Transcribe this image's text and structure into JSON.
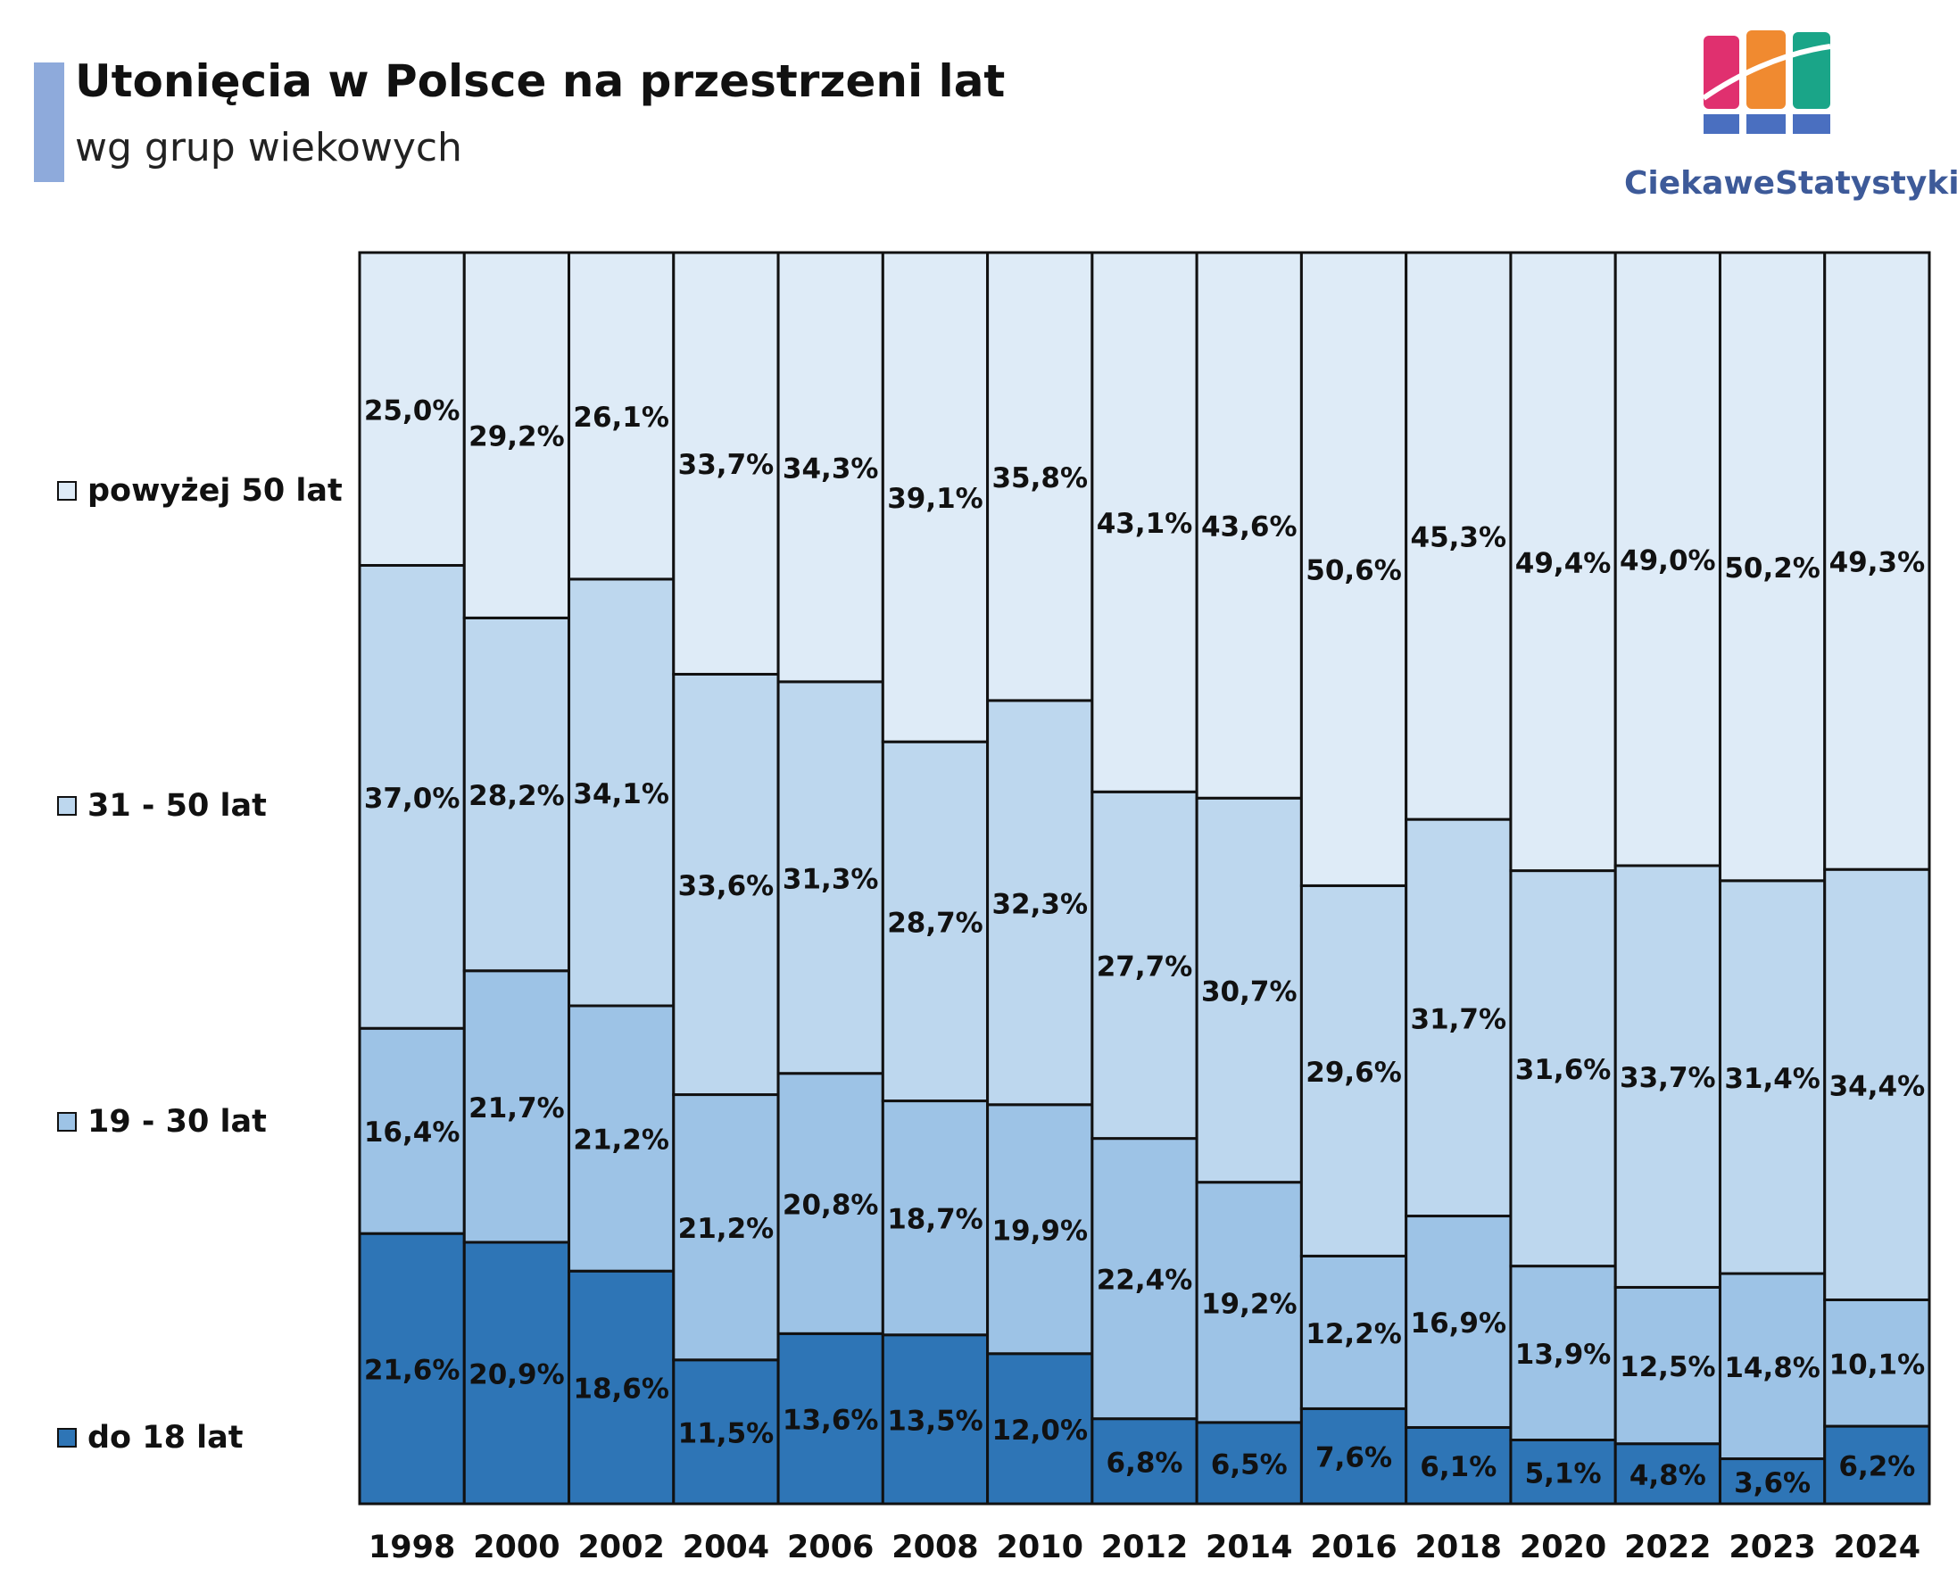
{
  "header": {
    "title": "Utonięcia w Polsce na przestrzeni lat",
    "subtitle": "wg grup wiekowych",
    "logo_text": "CiekaweStatystyki.pl"
  },
  "colors": {
    "do_18": "#2e75b6",
    "19_30": "#9dc3e6",
    "31_50": "#bdd7ee",
    "pow_50": "#deebf7",
    "accent": "#8eaadb",
    "logo_pink": "#e0306f",
    "logo_orange": "#f08a30",
    "logo_teal": "#1aa588",
    "logo_blue": "#4a6fc0"
  },
  "chart_data": {
    "type": "bar",
    "stacked": true,
    "normalized_percent": true,
    "title": "Utonięcia w Polsce na przestrzeni lat",
    "subtitle": "wg grup wiekowych",
    "xlabel": "",
    "ylabel": "",
    "ylim": [
      0,
      100
    ],
    "legend_position": "left",
    "categories": [
      "1998",
      "2000",
      "2002",
      "2004",
      "2006",
      "2008",
      "2010",
      "2012",
      "2014",
      "2016",
      "2018",
      "2020",
      "2022",
      "2023",
      "2024"
    ],
    "series": [
      {
        "name": "do 18 lat",
        "color_key": "do_18",
        "values": [
          21.6,
          20.9,
          18.6,
          11.5,
          13.6,
          13.5,
          12.0,
          6.8,
          6.5,
          7.6,
          6.1,
          5.1,
          4.8,
          3.6,
          6.2
        ],
        "labels": [
          "21,6%",
          "20,9%",
          "18,6%",
          "11,5%",
          "13,6%",
          "13,5%",
          "12,0%",
          "6,8%",
          "6,5%",
          "7,6%",
          "6,1%",
          "5,1%",
          "4,8%",
          "3,6%",
          "6,2%"
        ]
      },
      {
        "name": "19 - 30 lat",
        "color_key": "19_30",
        "values": [
          16.4,
          21.7,
          21.2,
          21.2,
          20.8,
          18.7,
          19.9,
          22.4,
          19.2,
          12.2,
          16.9,
          13.9,
          12.5,
          14.8,
          10.1
        ],
        "labels": [
          "16,4%",
          "21,7%",
          "21,2%",
          "21,2%",
          "20,8%",
          "18,7%",
          "19,9%",
          "22,4%",
          "19,2%",
          "12,2%",
          "16,9%",
          "13,9%",
          "12,5%",
          "14,8%",
          "10,1%"
        ]
      },
      {
        "name": "31 - 50 lat",
        "color_key": "31_50",
        "values": [
          37.0,
          28.2,
          34.1,
          33.6,
          31.3,
          28.7,
          32.3,
          27.7,
          30.7,
          29.6,
          31.7,
          31.6,
          33.7,
          31.4,
          34.4
        ],
        "labels": [
          "37,0%",
          "28,2%",
          "34,1%",
          "33,6%",
          "31,3%",
          "28,7%",
          "32,3%",
          "27,7%",
          "30,7%",
          "29,6%",
          "31,7%",
          "31,6%",
          "33,7%",
          "31,4%",
          "34,4%"
        ]
      },
      {
        "name": "powyżej 50 lat",
        "color_key": "pow_50",
        "values": [
          25.0,
          29.2,
          26.1,
          33.7,
          34.3,
          39.1,
          35.8,
          43.1,
          43.6,
          50.6,
          45.3,
          49.4,
          49.0,
          50.2,
          49.3
        ],
        "labels": [
          "25,0%",
          "29,2%",
          "26,1%",
          "33,7%",
          "34,3%",
          "39,1%",
          "35,8%",
          "43,1%",
          "43,6%",
          "50,6%",
          "45,3%",
          "49,4%",
          "49,0%",
          "50,2%",
          "49,3%"
        ]
      }
    ],
    "legend": [
      "powyżej 50 lat",
      "31 - 50 lat",
      "19 - 30 lat",
      "do 18 lat"
    ]
  }
}
